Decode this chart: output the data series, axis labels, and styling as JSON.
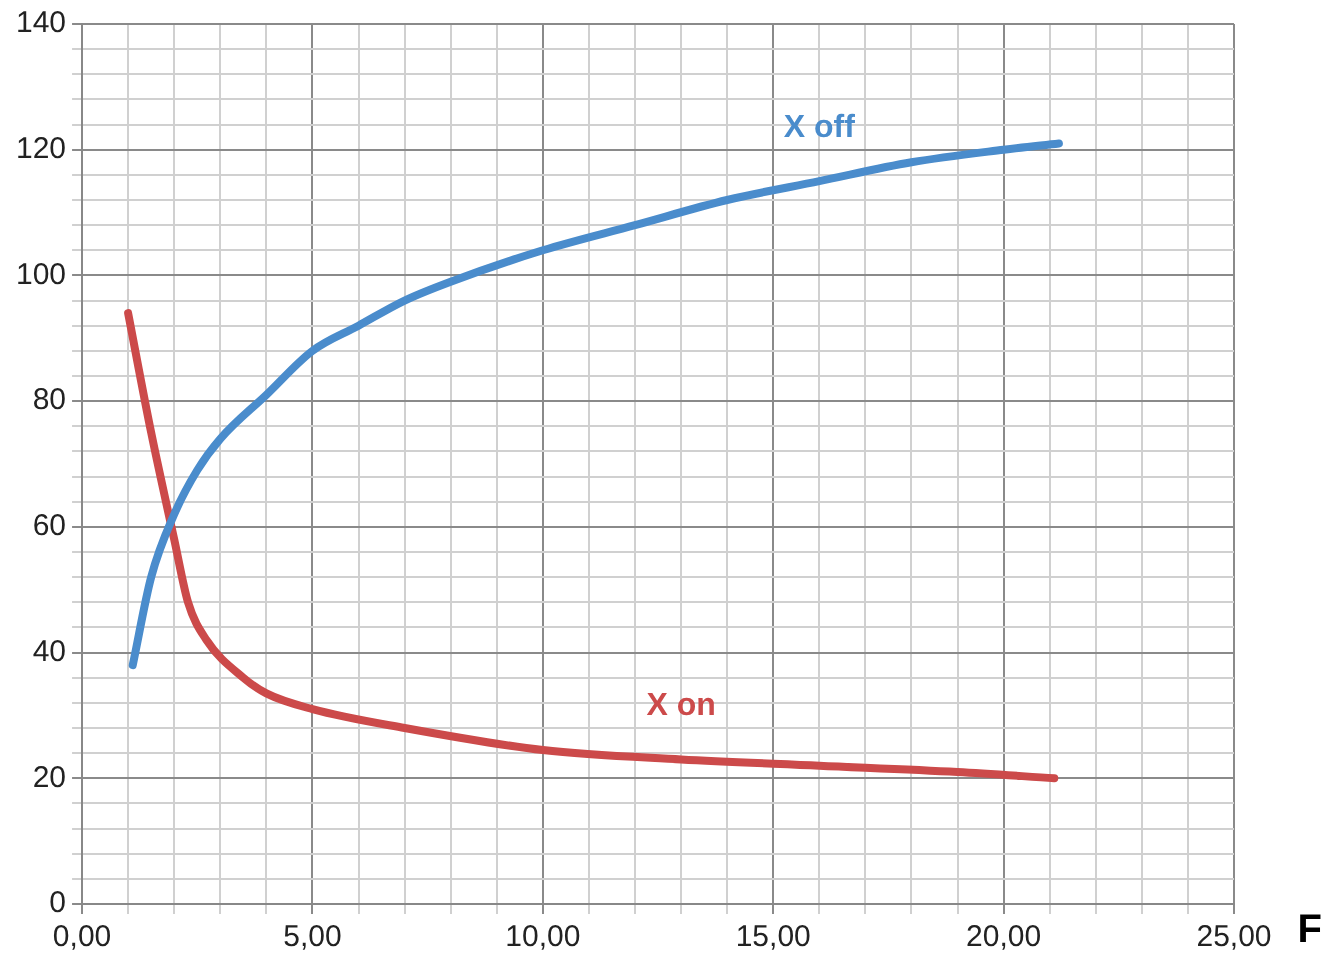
{
  "chart_data": {
    "type": "line",
    "xlabel": "F",
    "xlim": [
      0,
      25
    ],
    "ylim": [
      0,
      140
    ],
    "xticks": [
      {
        "value": 0,
        "label": "0,00"
      },
      {
        "value": 1,
        "label": null
      },
      {
        "value": 2,
        "label": null
      },
      {
        "value": 3,
        "label": null
      },
      {
        "value": 4,
        "label": null
      },
      {
        "value": 5,
        "label": "5,00"
      },
      {
        "value": 6,
        "label": null
      },
      {
        "value": 7,
        "label": null
      },
      {
        "value": 8,
        "label": null
      },
      {
        "value": 9,
        "label": null
      },
      {
        "value": 10,
        "label": "10,00"
      },
      {
        "value": 11,
        "label": null
      },
      {
        "value": 12,
        "label": null
      },
      {
        "value": 13,
        "label": null
      },
      {
        "value": 14,
        "label": null
      },
      {
        "value": 15,
        "label": "15,00"
      },
      {
        "value": 16,
        "label": null
      },
      {
        "value": 17,
        "label": null
      },
      {
        "value": 18,
        "label": null
      },
      {
        "value": 19,
        "label": null
      },
      {
        "value": 20,
        "label": "20,00"
      },
      {
        "value": 21,
        "label": null
      },
      {
        "value": 22,
        "label": null
      },
      {
        "value": 23,
        "label": null
      },
      {
        "value": 24,
        "label": null
      },
      {
        "value": 25,
        "label": "25,00"
      }
    ],
    "yticks": [
      0,
      {
        "value": 4,
        "label": null
      },
      {
        "value": 8,
        "label": null
      },
      {
        "value": 12,
        "label": null
      },
      {
        "value": 16,
        "label": null
      },
      20,
      {
        "value": 24,
        "label": null
      },
      {
        "value": 28,
        "label": null
      },
      {
        "value": 32,
        "label": null
      },
      {
        "value": 36,
        "label": null
      },
      40,
      {
        "value": 44,
        "label": null
      },
      {
        "value": 48,
        "label": null
      },
      {
        "value": 52,
        "label": null
      },
      {
        "value": 56,
        "label": null
      },
      60,
      {
        "value": 64,
        "label": null
      },
      {
        "value": 68,
        "label": null
      },
      {
        "value": 72,
        "label": null
      },
      {
        "value": 76,
        "label": null
      },
      80,
      {
        "value": 84,
        "label": null
      },
      {
        "value": 88,
        "label": null
      },
      {
        "value": 92,
        "label": null
      },
      {
        "value": 96,
        "label": null
      },
      100,
      {
        "value": 104,
        "label": null
      },
      {
        "value": 108,
        "label": null
      },
      {
        "value": 112,
        "label": null
      },
      {
        "value": 116,
        "label": null
      },
      120,
      {
        "value": 124,
        "label": null
      },
      {
        "value": 128,
        "label": null
      },
      {
        "value": 132,
        "label": null
      },
      {
        "value": 136,
        "label": null
      },
      140
    ],
    "grid": true,
    "legend": false,
    "marker": "none",
    "line_style": "solid",
    "series": [
      {
        "name": "X off",
        "color": "#4a8ccc",
        "x": [
          1.1,
          1.5,
          2,
          2.5,
          3,
          4,
          5,
          6,
          7,
          8,
          10,
          12,
          14,
          16,
          18,
          20,
          21.2
        ],
        "values": [
          38,
          52,
          62,
          69,
          74,
          81,
          88,
          92,
          96,
          99,
          104,
          108,
          112,
          115,
          118,
          120,
          121
        ]
      },
      {
        "name": "X on",
        "color": "#cc4a4a",
        "x": [
          1,
          1.5,
          2,
          2.3,
          2.7,
          3.5,
          4,
          5,
          7,
          10,
          13,
          16,
          19,
          21.1
        ],
        "values": [
          94,
          75,
          58,
          48,
          42,
          36,
          33.5,
          31,
          28,
          24.5,
          23,
          22,
          21,
          20
        ]
      }
    ]
  }
}
